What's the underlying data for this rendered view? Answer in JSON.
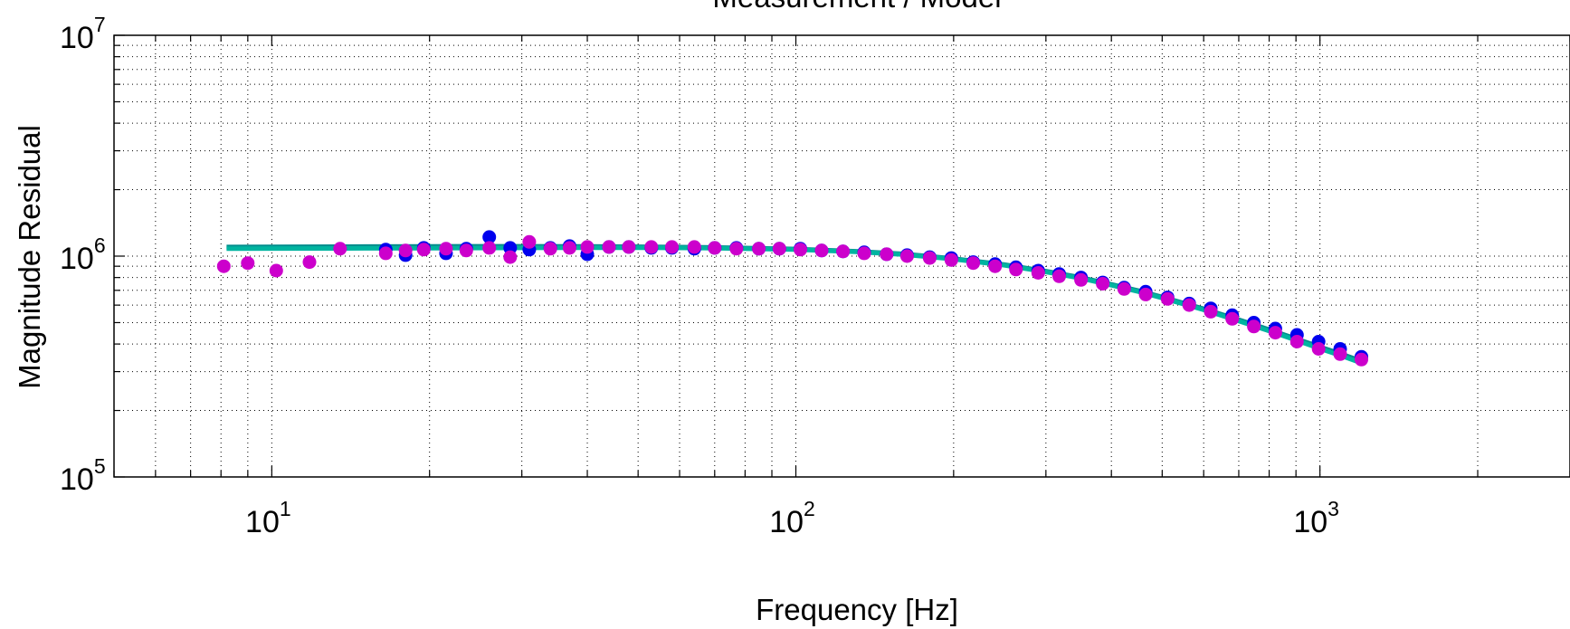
{
  "chart_data": {
    "type": "line",
    "title": "Measurement / Model",
    "xlabel": "Frequency [Hz]",
    "ylabel": "Magnitude Residual",
    "x_scale": "log",
    "y_scale": "log",
    "xlim": [
      5,
      3000
    ],
    "ylim": [
      100000,
      10000000
    ],
    "grid": true,
    "x_ticks": [
      {
        "value": 10,
        "base": "10",
        "exp": "1"
      },
      {
        "value": 100,
        "base": "10",
        "exp": "2"
      },
      {
        "value": 1000,
        "base": "10",
        "exp": "3"
      }
    ],
    "y_ticks": [
      {
        "value": 100000,
        "base": "10",
        "exp": "5"
      },
      {
        "value": 1000000,
        "base": "10",
        "exp": "6"
      },
      {
        "value": 10000000,
        "base": "10",
        "exp": "7"
      }
    ],
    "series": [
      {
        "kind": "line",
        "color": "#008c8c",
        "x": [
          8.2,
          10,
          15,
          20,
          30,
          40,
          50,
          70,
          100,
          130,
          160,
          200,
          250,
          300,
          350,
          400,
          450,
          500,
          600,
          700,
          800,
          900,
          1000,
          1100,
          1200
        ],
        "y": [
          1100000,
          1102000,
          1105000,
          1107000,
          1108000,
          1106000,
          1103000,
          1095000,
          1077000,
          1052000,
          1024000,
          975000,
          915000,
          855000,
          800000,
          745000,
          698000,
          653000,
          578000,
          515000,
          465000,
          423000,
          388000,
          360000,
          335000
        ]
      },
      {
        "kind": "line",
        "color": "#00b4a0",
        "x": [
          8.2,
          10,
          15,
          20,
          30,
          40,
          50,
          70,
          100,
          130,
          160,
          200,
          250,
          300,
          350,
          400,
          450,
          500,
          600,
          700,
          800,
          900,
          1000,
          1100,
          1200
        ],
        "y": [
          1080000,
          1082000,
          1085000,
          1087000,
          1090000,
          1092000,
          1092000,
          1087000,
          1070000,
          1045000,
          1017000,
          968000,
          908000,
          848000,
          793000,
          738000,
          691000,
          646000,
          571000,
          508000,
          458000,
          416000,
          381000,
          353000,
          328000
        ]
      },
      {
        "kind": "scatter",
        "color": "#0000ee",
        "x": [
          16.5,
          18,
          19.5,
          21.5,
          23.5,
          26,
          28.5,
          31,
          34,
          37,
          40,
          44,
          48,
          53,
          58,
          64,
          70,
          77,
          85,
          93,
          102,
          112,
          123,
          135,
          149,
          163,
          180,
          198,
          218,
          240,
          263,
          290,
          318,
          350,
          385,
          423,
          465,
          512,
          563,
          619,
          680,
          748,
          822,
          904,
          994,
          1093,
          1200
        ],
        "y": [
          1070000,
          1010000,
          1090000,
          1030000,
          1080000,
          1220000,
          1090000,
          1070000,
          1090000,
          1110000,
          1020000,
          1100000,
          1100000,
          1090000,
          1090000,
          1080000,
          1090000,
          1090000,
          1080000,
          1080000,
          1080000,
          1060000,
          1050000,
          1040000,
          1020000,
          1010000,
          990000,
          980000,
          940000,
          920000,
          890000,
          860000,
          830000,
          800000,
          760000,
          720000,
          690000,
          650000,
          610000,
          580000,
          540000,
          500000,
          470000,
          440000,
          410000,
          380000,
          350000
        ]
      },
      {
        "kind": "scatter",
        "color": "#cc00cc",
        "x": [
          8.1,
          9,
          10.2,
          11.8,
          13.5,
          16.5,
          18,
          19.5,
          21.5,
          23.5,
          26,
          28.5,
          31,
          34,
          37,
          40,
          44,
          48,
          53,
          58,
          64,
          70,
          77,
          85,
          93,
          102,
          112,
          123,
          135,
          149,
          163,
          180,
          198,
          218,
          240,
          263,
          290,
          318,
          350,
          385,
          423,
          465,
          512,
          563,
          619,
          680,
          748,
          822,
          904,
          994,
          1093,
          1200
        ],
        "y": [
          900000,
          930000,
          860000,
          940000,
          1080000,
          1030000,
          1060000,
          1070000,
          1080000,
          1060000,
          1090000,
          990000,
          1160000,
          1080000,
          1090000,
          1100000,
          1100000,
          1100000,
          1100000,
          1100000,
          1100000,
          1090000,
          1080000,
          1080000,
          1080000,
          1070000,
          1060000,
          1050000,
          1030000,
          1020000,
          1000000,
          980000,
          960000,
          930000,
          900000,
          870000,
          840000,
          810000,
          780000,
          750000,
          710000,
          670000,
          640000,
          600000,
          560000,
          520000,
          480000,
          450000,
          410000,
          380000,
          360000,
          340000
        ]
      }
    ]
  }
}
